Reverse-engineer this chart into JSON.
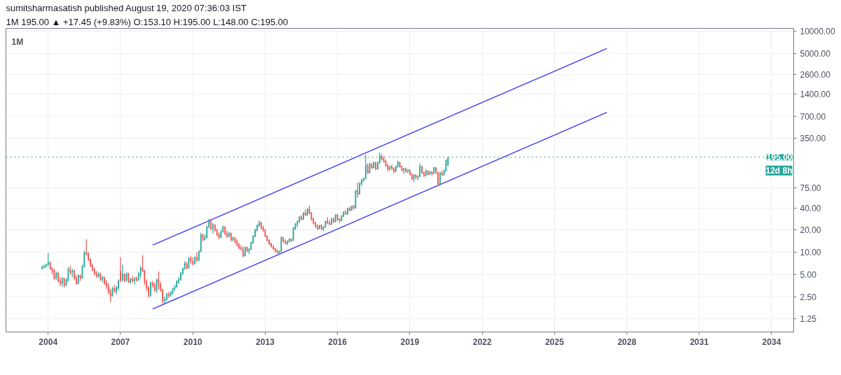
{
  "chart_data": {
    "type": "candlestick",
    "title": "sumitsharmasatish published August 19, 2020 07:36:03 IST",
    "subtitle": "1M 195.00 ▲ +17.45 (+9.83%) O:153.10 H:195.00 L:148.00 C:195.00",
    "annotations": [
      "1M",
      "12d 8h"
    ],
    "x": [
      "2003-10",
      "2003-11",
      "2003-12",
      "2004-01",
      "2004-02",
      "2004-03",
      "2004-04",
      "2004-05",
      "2004-06",
      "2004-07",
      "2004-08",
      "2004-09",
      "2004-10",
      "2004-11",
      "2004-12",
      "2005-01",
      "2005-02",
      "2005-03",
      "2005-04",
      "2005-05",
      "2005-06",
      "2005-07",
      "2005-08",
      "2005-09",
      "2005-10",
      "2005-11",
      "2005-12",
      "2006-01",
      "2006-02",
      "2006-03",
      "2006-04",
      "2006-05",
      "2006-06",
      "2006-07",
      "2006-08",
      "2006-09",
      "2006-10",
      "2006-11",
      "2006-12",
      "2007-01",
      "2007-02",
      "2007-03",
      "2007-04",
      "2007-05",
      "2007-06",
      "2007-07",
      "2007-08",
      "2007-09",
      "2007-10",
      "2007-11",
      "2007-12",
      "2008-01",
      "2008-02",
      "2008-03",
      "2008-04",
      "2008-05",
      "2008-06",
      "2008-07",
      "2008-08",
      "2008-09",
      "2008-10",
      "2008-11",
      "2008-12",
      "2009-01",
      "2009-02",
      "2009-03",
      "2009-04",
      "2009-05",
      "2009-06",
      "2009-07",
      "2009-08",
      "2009-09",
      "2009-10",
      "2009-11",
      "2009-12",
      "2010-01",
      "2010-02",
      "2010-03",
      "2010-04",
      "2010-05",
      "2010-06",
      "2010-07",
      "2010-08",
      "2010-09",
      "2010-10",
      "2010-11",
      "2010-12",
      "2011-01",
      "2011-02",
      "2011-03",
      "2011-04",
      "2011-05",
      "2011-06",
      "2011-07",
      "2011-08",
      "2011-09",
      "2011-10",
      "2011-11",
      "2011-12",
      "2012-01",
      "2012-02",
      "2012-03",
      "2012-04",
      "2012-05",
      "2012-06",
      "2012-07",
      "2012-08",
      "2012-09",
      "2012-10",
      "2012-11",
      "2012-12",
      "2013-01",
      "2013-02",
      "2013-03",
      "2013-04",
      "2013-05",
      "2013-06",
      "2013-07",
      "2013-08",
      "2013-09",
      "2013-10",
      "2013-11",
      "2013-12",
      "2014-01",
      "2014-02",
      "2014-03",
      "2014-04",
      "2014-05",
      "2014-06",
      "2014-07",
      "2014-08",
      "2014-09",
      "2014-10",
      "2014-11",
      "2014-12",
      "2015-01",
      "2015-02",
      "2015-03",
      "2015-04",
      "2015-05",
      "2015-06",
      "2015-07",
      "2015-08",
      "2015-09",
      "2015-10",
      "2015-11",
      "2015-12",
      "2016-01",
      "2016-02",
      "2016-03",
      "2016-04",
      "2016-05",
      "2016-06",
      "2016-07",
      "2016-08",
      "2016-09",
      "2016-10",
      "2016-11",
      "2016-12",
      "2017-01",
      "2017-02",
      "2017-03",
      "2017-04",
      "2017-05",
      "2017-06",
      "2017-07",
      "2017-08",
      "2017-09",
      "2017-10",
      "2017-11",
      "2017-12",
      "2018-01",
      "2018-02",
      "2018-03",
      "2018-04",
      "2018-05",
      "2018-06",
      "2018-07",
      "2018-08",
      "2018-09",
      "2018-10",
      "2018-11",
      "2018-12",
      "2019-01",
      "2019-02",
      "2019-03",
      "2019-04",
      "2019-05",
      "2019-06",
      "2019-07",
      "2019-08",
      "2019-09",
      "2019-10",
      "2019-11",
      "2019-12",
      "2020-01",
      "2020-02",
      "2020-03",
      "2020-04",
      "2020-05",
      "2020-06",
      "2020-07",
      "2020-08"
    ],
    "ohlc": [
      [
        6.0,
        6.6,
        5.8,
        6.3
      ],
      [
        6.3,
        6.8,
        6.0,
        6.5
      ],
      [
        6.5,
        7.0,
        6.2,
        6.8
      ],
      [
        6.8,
        9.8,
        6.5,
        7.2
      ],
      [
        7.2,
        7.5,
        5.8,
        6.0
      ],
      [
        6.0,
        6.3,
        5.0,
        5.6
      ],
      [
        5.6,
        6.0,
        4.2,
        4.5
      ],
      [
        4.5,
        5.5,
        4.2,
        5.2
      ],
      [
        5.2,
        5.4,
        3.9,
        4.1
      ],
      [
        4.1,
        4.6,
        3.5,
        3.8
      ],
      [
        3.8,
        4.6,
        3.4,
        4.4
      ],
      [
        4.4,
        4.5,
        3.3,
        3.6
      ],
      [
        3.6,
        4.5,
        3.5,
        4.2
      ],
      [
        4.2,
        6.3,
        4.0,
        5.8
      ],
      [
        5.8,
        6.5,
        5.0,
        5.4
      ],
      [
        5.4,
        6.0,
        4.6,
        5.6
      ],
      [
        5.6,
        5.8,
        4.2,
        4.5
      ],
      [
        4.5,
        4.9,
        3.6,
        3.8
      ],
      [
        3.8,
        5.0,
        3.7,
        4.8
      ],
      [
        4.8,
        5.0,
        4.1,
        4.5
      ],
      [
        4.5,
        6.8,
        4.4,
        6.4
      ],
      [
        6.4,
        10.5,
        6.2,
        9.8
      ],
      [
        9.8,
        15,
        9.0,
        9.5
      ],
      [
        9.5,
        10,
        7.6,
        8.0
      ],
      [
        8.0,
        8.3,
        6.3,
        6.6
      ],
      [
        6.6,
        7.0,
        5.5,
        5.8
      ],
      [
        5.8,
        6.2,
        4.9,
        5.2
      ],
      [
        5.2,
        5.6,
        4.5,
        4.8
      ],
      [
        4.8,
        5.4,
        4.5,
        5.0
      ],
      [
        5.0,
        5.3,
        4.1,
        4.3
      ],
      [
        4.3,
        4.8,
        3.9,
        4.5
      ],
      [
        4.5,
        4.7,
        3.6,
        3.8
      ],
      [
        3.8,
        4.2,
        3.2,
        3.5
      ],
      [
        3.5,
        3.8,
        2.7,
        2.9
      ],
      [
        2.9,
        3.2,
        2.1,
        2.6
      ],
      [
        2.6,
        3.4,
        2.5,
        3.2
      ],
      [
        3.2,
        3.6,
        2.8,
        3.0
      ],
      [
        3.0,
        3.5,
        2.7,
        3.3
      ],
      [
        3.3,
        4.3,
        3.1,
        4.1
      ],
      [
        5.5,
        8.6,
        3.9,
        4.2
      ],
      [
        4.2,
        6.8,
        4.0,
        5.0
      ],
      [
        5.0,
        5.2,
        3.9,
        4.2
      ],
      [
        4.2,
        5.4,
        4.0,
        5.0
      ],
      [
        5.0,
        5.3,
        3.8,
        4.0
      ],
      [
        4.0,
        4.5,
        3.7,
        4.3
      ],
      [
        4.3,
        4.8,
        3.9,
        4.1
      ],
      [
        4.1,
        4.6,
        3.6,
        4.4
      ],
      [
        4.4,
        4.7,
        4.0,
        4.2
      ],
      [
        4.2,
        5.4,
        4.1,
        5.0
      ],
      [
        5.0,
        6.5,
        4.5,
        6.0
      ],
      [
        6.0,
        9.2,
        5.4,
        5.6
      ],
      [
        5.6,
        5.8,
        3.6,
        4.0
      ],
      [
        4.0,
        4.3,
        3.0,
        3.3
      ],
      [
        3.3,
        3.5,
        2.4,
        2.6
      ],
      [
        2.6,
        4.0,
        2.5,
        3.8
      ],
      [
        3.8,
        4.1,
        3.3,
        3.6
      ],
      [
        3.6,
        3.9,
        2.9,
        3.1
      ],
      [
        3.1,
        4.4,
        2.8,
        4.2
      ],
      [
        4.2,
        5.5,
        3.1,
        3.6
      ],
      [
        3.6,
        4.0,
        2.9,
        3.1
      ],
      [
        3.1,
        3.2,
        2.0,
        2.2
      ],
      [
        2.2,
        2.5,
        2.0,
        2.3
      ],
      [
        2.3,
        2.8,
        2.2,
        2.7
      ],
      [
        2.7,
        2.9,
        2.4,
        2.6
      ],
      [
        2.6,
        3.0,
        2.5,
        2.8
      ],
      [
        2.8,
        3.3,
        2.7,
        3.2
      ],
      [
        3.2,
        3.6,
        3.0,
        3.4
      ],
      [
        3.4,
        4.2,
        3.3,
        4.0
      ],
      [
        4.0,
        4.6,
        3.7,
        4.3
      ],
      [
        4.3,
        5.4,
        4.1,
        5.2
      ],
      [
        5.2,
        6.2,
        4.9,
        6.0
      ],
      [
        6.0,
        7.6,
        5.8,
        7.0
      ],
      [
        7.0,
        7.4,
        5.8,
        6.2
      ],
      [
        6.2,
        8.6,
        6.0,
        8.2
      ],
      [
        8.2,
        9.0,
        7.0,
        7.5
      ],
      [
        7.5,
        8.5,
        6.6,
        7.0
      ],
      [
        7.0,
        8.8,
        6.8,
        8.5
      ],
      [
        8.5,
        10,
        7.4,
        7.8
      ],
      [
        7.8,
        10.5,
        7.6,
        10.2
      ],
      [
        10.2,
        18.5,
        10,
        17
      ],
      [
        17,
        18,
        14,
        15
      ],
      [
        15,
        17.5,
        14.5,
        16
      ],
      [
        16,
        23,
        15.5,
        22
      ],
      [
        22,
        28.5,
        21,
        26
      ],
      [
        26,
        27,
        20,
        21
      ],
      [
        21,
        25,
        18,
        23.5
      ],
      [
        23.5,
        24,
        19,
        20
      ],
      [
        20,
        21,
        16.5,
        17.5
      ],
      [
        17.5,
        18.5,
        15,
        16
      ],
      [
        16,
        20,
        15.5,
        19
      ],
      [
        19,
        23,
        18.5,
        22
      ],
      [
        22,
        22.5,
        17,
        18
      ],
      [
        18,
        19.5,
        15.5,
        16.5
      ],
      [
        16.5,
        19,
        16,
        18
      ],
      [
        18,
        18.5,
        14,
        15
      ],
      [
        15,
        16.5,
        14,
        15.5
      ],
      [
        15.5,
        16,
        13,
        14
      ],
      [
        14,
        15,
        12,
        12.5
      ],
      [
        12.5,
        13.5,
        11,
        11.5
      ],
      [
        11.5,
        12.5,
        10.5,
        11
      ],
      [
        11,
        12,
        8.5,
        9
      ],
      [
        9,
        12,
        8.8,
        11.5
      ],
      [
        11.5,
        12,
        10,
        10.5
      ],
      [
        10.5,
        11.5,
        9.5,
        11
      ],
      [
        11,
        14,
        10.8,
        13.5
      ],
      [
        13.5,
        17,
        13,
        16.5
      ],
      [
        16.5,
        21,
        16,
        20
      ],
      [
        20,
        24,
        19,
        23
      ],
      [
        23,
        27,
        22,
        25
      ],
      [
        25,
        26,
        20.5,
        21.5
      ],
      [
        21.5,
        23,
        19,
        20
      ],
      [
        20,
        20.5,
        16,
        16.5
      ],
      [
        16.5,
        17,
        14,
        14.5
      ],
      [
        14.5,
        15,
        12.5,
        13
      ],
      [
        13,
        13.5,
        11.5,
        12
      ],
      [
        12,
        12.5,
        10.8,
        11.2
      ],
      [
        11.2,
        11.5,
        10,
        10.4
      ],
      [
        10.4,
        11,
        9.6,
        10
      ],
      [
        10,
        10.6,
        9.4,
        10.3
      ],
      [
        10.3,
        16.5,
        10,
        15.8
      ],
      [
        15.8,
        16,
        13.5,
        14
      ],
      [
        14,
        15,
        12.8,
        13.2
      ],
      [
        13.2,
        14.5,
        12.5,
        14
      ],
      [
        14,
        15.5,
        13.5,
        15
      ],
      [
        15,
        15.5,
        13.8,
        14.5
      ],
      [
        14.5,
        22,
        14.3,
        21
      ],
      [
        21,
        25,
        20,
        24
      ],
      [
        24,
        27,
        22,
        26
      ],
      [
        26,
        31,
        25,
        30
      ],
      [
        30,
        32,
        27,
        28
      ],
      [
        28,
        35,
        27.5,
        34
      ],
      [
        34,
        38,
        31,
        32
      ],
      [
        32,
        40,
        31.5,
        38
      ],
      [
        38,
        43,
        33,
        34
      ],
      [
        34,
        35,
        27,
        28
      ],
      [
        28,
        30,
        24,
        25
      ],
      [
        25,
        26,
        21.5,
        22.5
      ],
      [
        22.5,
        24,
        20,
        21
      ],
      [
        21,
        23.5,
        20.5,
        23
      ],
      [
        23,
        24,
        20,
        21
      ],
      [
        21,
        22.5,
        19.5,
        22
      ],
      [
        22,
        27,
        21.5,
        26
      ],
      [
        26,
        30,
        24,
        25
      ],
      [
        25,
        27,
        23,
        24
      ],
      [
        24,
        29,
        23.5,
        28
      ],
      [
        28,
        30,
        25,
        26
      ],
      [
        26,
        33,
        25.5,
        32
      ],
      [
        32,
        33,
        27,
        28
      ],
      [
        28,
        29,
        25,
        27
      ],
      [
        27,
        32,
        26.5,
        31
      ],
      [
        31,
        36,
        30,
        35
      ],
      [
        35,
        37,
        32,
        33
      ],
      [
        33,
        40,
        32.5,
        39
      ],
      [
        39,
        42,
        36,
        37
      ],
      [
        37,
        43,
        36.5,
        42
      ],
      [
        42,
        44,
        38,
        40
      ],
      [
        40,
        70,
        39,
        68
      ],
      [
        68,
        88,
        55,
        62
      ],
      [
        62,
        90,
        60,
        85
      ],
      [
        85,
        100,
        80,
        95
      ],
      [
        95,
        102,
        90,
        100
      ],
      [
        100,
        210,
        98,
        150
      ],
      [
        150,
        160,
        115,
        120
      ],
      [
        120,
        165,
        118,
        155
      ],
      [
        155,
        162,
        135,
        140
      ],
      [
        140,
        170,
        138,
        165
      ],
      [
        165,
        168,
        130,
        135
      ],
      [
        135,
        170,
        132,
        165
      ],
      [
        165,
        225,
        160,
        200
      ],
      [
        200,
        215,
        175,
        185
      ],
      [
        185,
        200,
        165,
        170
      ],
      [
        170,
        180,
        145,
        150
      ],
      [
        150,
        160,
        125,
        135
      ],
      [
        135,
        150,
        128,
        145
      ],
      [
        145,
        155,
        130,
        138
      ],
      [
        138,
        142,
        118,
        125
      ],
      [
        125,
        150,
        122,
        145
      ],
      [
        145,
        175,
        140,
        165
      ],
      [
        165,
        170,
        140,
        145
      ],
      [
        145,
        150,
        125,
        130
      ],
      [
        130,
        140,
        115,
        135
      ],
      [
        135,
        140,
        120,
        125
      ],
      [
        125,
        135,
        118,
        130
      ],
      [
        130,
        132,
        110,
        115
      ],
      [
        115,
        118,
        95,
        100
      ],
      [
        100,
        115,
        90,
        110
      ],
      [
        110,
        115,
        98,
        105
      ],
      [
        105,
        110,
        95,
        108
      ],
      [
        108,
        160,
        105,
        145
      ],
      [
        145,
        150,
        115,
        120
      ],
      [
        120,
        125,
        105,
        110
      ],
      [
        110,
        135,
        108,
        125
      ],
      [
        125,
        130,
        110,
        115
      ],
      [
        115,
        128,
        112,
        122
      ],
      [
        122,
        126,
        110,
        118
      ],
      [
        118,
        145,
        115,
        140
      ],
      [
        140,
        142,
        115,
        120
      ],
      [
        120,
        122,
        80,
        85
      ],
      [
        85,
        125,
        84,
        118
      ],
      [
        118,
        128,
        108,
        112
      ],
      [
        112,
        132,
        110,
        128
      ],
      [
        128,
        180,
        126,
        178
      ],
      [
        153.1,
        195,
        148,
        195
      ]
    ],
    "colors": [
      "#26a69a",
      "#26a69a",
      "#26a69a",
      "#26a69a",
      "#ef5350",
      "#ef5350",
      "#ef5350",
      "#26a69a",
      "#ef5350",
      "#ef5350",
      "#26a69a",
      "#ef5350",
      "#26a69a",
      "#26a69a",
      "#ef5350",
      "#26a69a",
      "#ef5350",
      "#ef5350",
      "#26a69a",
      "#ef5350",
      "#26a69a",
      "#26a69a",
      "#ef5350",
      "#ef5350",
      "#ef5350",
      "#ef5350",
      "#ef5350",
      "#ef5350",
      "#26a69a",
      "#ef5350",
      "#26a69a",
      "#ef5350",
      "#ef5350",
      "#ef5350",
      "#ef5350",
      "#26a69a",
      "#ef5350",
      "#26a69a",
      "#26a69a",
      "#ef5350",
      "#26a69a",
      "#ef5350",
      "#26a69a",
      "#ef5350",
      "#26a69a",
      "#ef5350",
      "#26a69a",
      "#ef5350",
      "#26a69a",
      "#26a69a",
      "#ef5350",
      "#ef5350",
      "#ef5350",
      "#ef5350",
      "#26a69a",
      "#ef5350",
      "#ef5350",
      "#26a69a",
      "#ef5350",
      "#ef5350",
      "#ef5350",
      "#26a69a",
      "#26a69a",
      "#ef5350",
      "#26a69a",
      "#26a69a",
      "#26a69a",
      "#26a69a",
      "#26a69a",
      "#26a69a",
      "#26a69a",
      "#26a69a",
      "#ef5350",
      "#26a69a",
      "#ef5350",
      "#ef5350",
      "#26a69a",
      "#ef5350",
      "#26a69a",
      "#26a69a",
      "#ef5350",
      "#26a69a",
      "#26a69a",
      "#26a69a",
      "#ef5350",
      "#26a69a",
      "#ef5350",
      "#ef5350",
      "#ef5350",
      "#26a69a",
      "#26a69a",
      "#ef5350",
      "#ef5350",
      "#26a69a",
      "#ef5350",
      "#26a69a",
      "#ef5350",
      "#ef5350",
      "#ef5350",
      "#ef5350",
      "#ef5350",
      "#26a69a",
      "#ef5350",
      "#26a69a",
      "#26a69a",
      "#26a69a",
      "#26a69a",
      "#26a69a",
      "#26a69a",
      "#ef5350",
      "#ef5350",
      "#ef5350",
      "#ef5350",
      "#ef5350",
      "#ef5350",
      "#ef5350",
      "#ef5350",
      "#ef5350",
      "#26a69a",
      "#26a69a",
      "#ef5350",
      "#ef5350",
      "#26a69a",
      "#26a69a",
      "#ef5350",
      "#26a69a",
      "#26a69a",
      "#26a69a",
      "#26a69a",
      "#ef5350",
      "#26a69a",
      "#ef5350",
      "#26a69a",
      "#ef5350",
      "#ef5350",
      "#ef5350",
      "#ef5350",
      "#ef5350",
      "#26a69a",
      "#ef5350",
      "#26a69a",
      "#26a69a",
      "#ef5350",
      "#ef5350",
      "#26a69a",
      "#ef5350",
      "#26a69a",
      "#ef5350",
      "#ef5350",
      "#26a69a",
      "#26a69a",
      "#ef5350",
      "#26a69a",
      "#ef5350",
      "#26a69a",
      "#ef5350",
      "#26a69a",
      "#ef5350",
      "#26a69a",
      "#26a69a",
      "#26a69a",
      "#26a69a",
      "#ef5350",
      "#26a69a",
      "#ef5350",
      "#26a69a",
      "#ef5350",
      "#26a69a",
      "#26a69a",
      "#ef5350",
      "#ef5350",
      "#ef5350",
      "#ef5350",
      "#26a69a",
      "#ef5350",
      "#ef5350",
      "#26a69a",
      "#26a69a",
      "#ef5350",
      "#ef5350",
      "#26a69a",
      "#ef5350",
      "#26a69a",
      "#ef5350",
      "#ef5350",
      "#26a69a",
      "#ef5350",
      "#26a69a",
      "#26a69a",
      "#ef5350",
      "#ef5350",
      "#26a69a",
      "#ef5350",
      "#26a69a",
      "#ef5350",
      "#26a69a",
      "#ef5350",
      "#ef5350",
      "#26a69a",
      "#ef5350",
      "#26a69a",
      "#26a69a",
      "#26a69a"
    ],
    "series": [
      {
        "type": "line",
        "x": [
          "2008-05",
          "2027-03"
        ],
        "values": [
          12.5,
          5800
        ],
        "color": "#3c3cf2"
      },
      {
        "type": "line",
        "x": [
          "2008-05",
          "2027-03"
        ],
        "values": [
          1.7,
          790
        ],
        "color": "#3c3cf2"
      }
    ],
    "xlim": [
      "2002-04",
      "2034-12"
    ],
    "xticks": [
      "2004",
      "2007",
      "2010",
      "2013",
      "2016",
      "2019",
      "2022",
      "2025",
      "2028",
      "2031",
      "2034"
    ],
    "ylim": [
      0.83,
      10900
    ],
    "yticks": [
      {
        "value": 10000,
        "label": "10000.00"
      },
      {
        "value": 5000,
        "label": "5000.00"
      },
      {
        "value": 2600,
        "label": "2600.00"
      },
      {
        "value": 1400,
        "label": "1400.00"
      },
      {
        "value": 700,
        "label": "700.00"
      },
      {
        "value": 350,
        "label": "350.00"
      },
      {
        "value": 75,
        "label": "75.00"
      },
      {
        "value": 40,
        "label": "40.00"
      },
      {
        "value": 20,
        "label": "20.00"
      },
      {
        "value": 10,
        "label": "10.00"
      },
      {
        "value": 5,
        "label": "5.00"
      },
      {
        "value": 2.5,
        "label": "2.50"
      },
      {
        "value": 1.25,
        "label": "1.25"
      }
    ],
    "log": true,
    "grid": true,
    "ref_lines": [
      {
        "axis": "y",
        "value": 195,
        "label": "195.00",
        "color": "#26a69a",
        "line_style": "dotted"
      }
    ]
  }
}
